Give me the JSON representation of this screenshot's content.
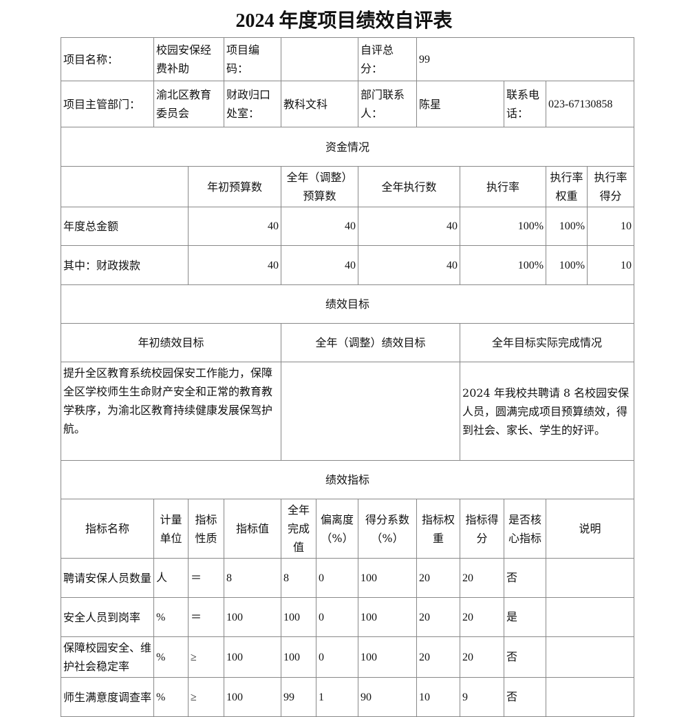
{
  "title": "2024 年度项目绩效自评表",
  "info": {
    "project_name_label": "项目名称：",
    "project_name": "校园安保经费补助",
    "project_code_label": "项目编码：",
    "project_code": "",
    "self_score_label": "自评总分：",
    "self_score": "99",
    "dept_label": "项目主管部门：",
    "dept": "渝北区教育委员会",
    "finance_office_label": "财政归口处室：",
    "finance_office": "教科文科",
    "contact_label": "部门联系人：",
    "contact": "陈星",
    "phone_label": "联系电话：",
    "phone": "023-67130858"
  },
  "funds": {
    "section": "资金情况",
    "headers": [
      "",
      "年初预算数",
      "全年（调整）预算数",
      "全年执行数",
      "执行率",
      "执行率权重",
      "执行率得分"
    ],
    "rows": [
      [
        "年度总金额",
        "40",
        "40",
        "40",
        "100%",
        "100%",
        "10"
      ],
      [
        "其中：财政拨款",
        "40",
        "40",
        "40",
        "100%",
        "100%",
        "10"
      ]
    ]
  },
  "goals": {
    "section": "绩效目标",
    "headers": [
      "年初绩效目标",
      "全年（调整）绩效目标",
      "全年目标实际完成情况"
    ],
    "initial": "提升全区教育系统校园保安工作能力，保障全区学校师生生命财产安全和正常的教育教学秩序，为渝北区教育持续健康发展保驾护航。",
    "adjusted": "",
    "actual": "2024 年我校共聘请 8 名校园安保人员，圆满完成项目预算绩效，得到社会、家长、学生的好评。"
  },
  "indicators": {
    "section": "绩效指标",
    "headers": [
      "指标名称",
      "计量单位",
      "指标性质",
      "指标值",
      "全年完成值",
      "偏离度（%）",
      "得分系数（%）",
      "指标权重",
      "指标得分",
      "是否核心指标",
      "说明"
    ],
    "rows": [
      [
        "聘请安保人员数量",
        "人",
        "＝",
        "8",
        "8",
        "0",
        "100",
        "20",
        "20",
        "否",
        ""
      ],
      [
        "安全人员到岗率",
        "%",
        "＝",
        "100",
        "100",
        "0",
        "100",
        "20",
        "20",
        "是",
        ""
      ],
      [
        "保障校园安全、维护社会稳定率",
        "%",
        "≥",
        "100",
        "100",
        "0",
        "100",
        "20",
        "20",
        "否",
        ""
      ],
      [
        "师生满意度调查率",
        "%",
        "≥",
        "100",
        "99",
        "1",
        "90",
        "10",
        "9",
        "否",
        ""
      ]
    ]
  }
}
